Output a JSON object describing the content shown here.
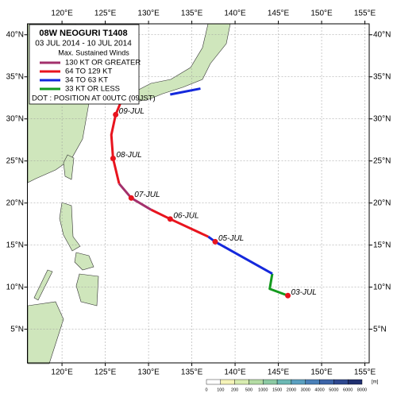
{
  "header": {
    "title": "08W  NEOGURI  T1408",
    "period": "03 JUL 2014 - 10 JUL 2014",
    "legend_title": "Max. Sustained Winds",
    "note": "DOT : POSITION AT 00UTC (09JST)"
  },
  "legend": [
    {
      "label": "130 KT OR GREATER",
      "color": "#a3306c"
    },
    {
      "label": "64 TO 129 KT",
      "color": "#e8141e"
    },
    {
      "label": "34 TO 63 KT",
      "color": "#1428dc"
    },
    {
      "label": "33 KT OR LESS",
      "color": "#149a1e"
    }
  ],
  "map": {
    "lon_range": [
      116,
      155.5
    ],
    "lat_range": [
      1,
      41.3
    ],
    "lon_ticks": [
      {
        "value": 120,
        "label": "120°E"
      },
      {
        "value": 125,
        "label": "125°E"
      },
      {
        "value": 130,
        "label": "130°E"
      },
      {
        "value": 135,
        "label": "135°E"
      },
      {
        "value": 140,
        "label": "140°E"
      },
      {
        "value": 145,
        "label": "145°E"
      },
      {
        "value": 150,
        "label": "150°E"
      },
      {
        "value": 155,
        "label": "155°E"
      }
    ],
    "lat_ticks": [
      {
        "value": 5,
        "label": "5°N"
      },
      {
        "value": 10,
        "label": "10°N"
      },
      {
        "value": 15,
        "label": "15°N"
      },
      {
        "value": 20,
        "label": "20°N"
      },
      {
        "value": 25,
        "label": "25°N"
      },
      {
        "value": 30,
        "label": "30°N"
      },
      {
        "value": 35,
        "label": "35°N"
      },
      {
        "value": 40,
        "label": "40°N"
      }
    ]
  },
  "track": [
    {
      "intensity": 3,
      "lon": [
        146.1,
        144.0,
        144.3
      ],
      "lat": [
        9.0,
        9.8,
        11.6
      ]
    },
    {
      "intensity": 2,
      "lon": [
        144.3,
        137.7,
        136.9
      ],
      "lat": [
        11.6,
        15.4,
        16.0
      ]
    },
    {
      "intensity": 1,
      "lon": [
        136.9,
        132.5,
        130.3
      ],
      "lat": [
        16.0,
        18.1,
        19.2
      ]
    },
    {
      "intensity": 0,
      "lon": [
        130.3,
        128.0,
        126.6
      ],
      "lat": [
        19.2,
        20.6,
        22.3
      ]
    },
    {
      "intensity": 1,
      "lon": [
        126.6,
        125.9,
        125.7,
        126.2,
        126.8
      ],
      "lat": [
        22.3,
        25.3,
        28.1,
        30.5,
        32.0
      ]
    },
    {
      "intensity": 2,
      "lon": [
        132.5,
        136.0
      ],
      "lat": [
        32.9,
        33.6
      ]
    }
  ],
  "positions": [
    {
      "label": "03-JUL",
      "lon": 146.1,
      "lat": 9.0
    },
    {
      "label": "05-JUL",
      "lon": 137.7,
      "lat": 15.4
    },
    {
      "label": "06-JUL",
      "lon": 132.5,
      "lat": 18.1
    },
    {
      "label": "07-JUL",
      "lon": 128.0,
      "lat": 20.6
    },
    {
      "label": "08-JUL",
      "lon": 125.9,
      "lat": 25.3
    },
    {
      "label": "09-JUL",
      "lon": 126.2,
      "lat": 30.5
    }
  ],
  "elevation_scale": {
    "levels": [
      "0",
      "100",
      "200",
      "500",
      "1000",
      "1500",
      "2000",
      "3000",
      "4000",
      "5000",
      "6000",
      "8000"
    ],
    "colors": [
      "#ffffff",
      "#f5f3b8",
      "#d8ecb0",
      "#b4dca4",
      "#8ccaa4",
      "#6cb8b4",
      "#5aa0c0",
      "#4a80b8",
      "#3c64a8",
      "#2e4890",
      "#203070"
    ],
    "unit": "[m]"
  }
}
